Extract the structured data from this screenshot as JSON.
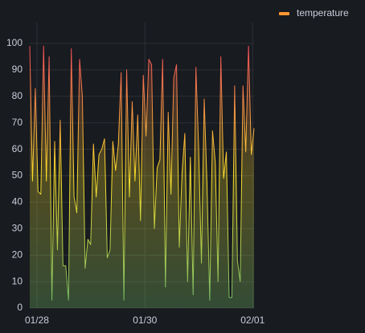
{
  "chart_data": {
    "type": "line",
    "series": [
      {
        "name": "temperature",
        "color": "#FF9830",
        "values": [
          99,
          48,
          83,
          44,
          43,
          99,
          48,
          95,
          3,
          63,
          22,
          71,
          16,
          16,
          3,
          98,
          42,
          36,
          94,
          80,
          15,
          26,
          24,
          62,
          42,
          58,
          60,
          64,
          19,
          22,
          63,
          52,
          62,
          89,
          3,
          90,
          42,
          78,
          48,
          73,
          33,
          88,
          65,
          94,
          92,
          30,
          53,
          56,
          94,
          8,
          74,
          43,
          87,
          92,
          23,
          51,
          66,
          10,
          57,
          5,
          91,
          60,
          17,
          79,
          47,
          3,
          67,
          55,
          10,
          95,
          49,
          59,
          4,
          4,
          84,
          18,
          10,
          84,
          59,
          99,
          58,
          68
        ]
      }
    ],
    "xlim": [
      0,
      81
    ],
    "xticks": [
      {
        "value": 2.6,
        "label": "01/28"
      },
      {
        "value": 41.6,
        "label": "01/30"
      },
      {
        "value": 80.5,
        "label": "02/01"
      }
    ],
    "ylim": [
      0,
      100
    ],
    "yticks": [
      0,
      10,
      20,
      30,
      40,
      50,
      60,
      70,
      80,
      90,
      100
    ],
    "grid": true,
    "legend": "top-right"
  }
}
